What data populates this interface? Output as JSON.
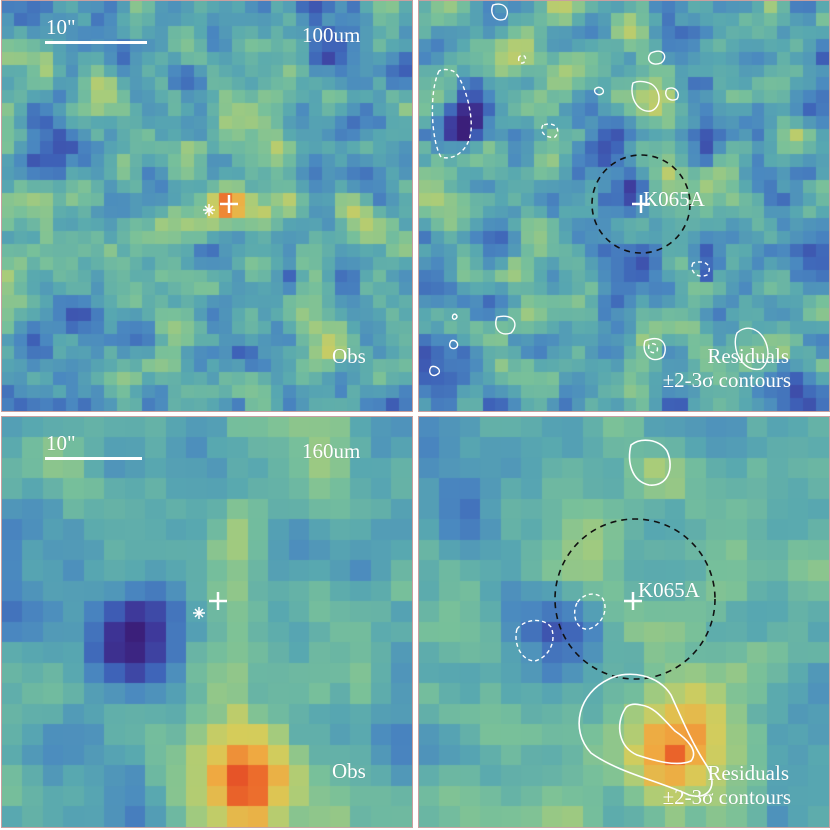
{
  "panels": [
    {
      "band": "100um",
      "scale_label": "10\"",
      "obs_label": "Obs"
    },
    {
      "source_label": "K065A",
      "resid_line1": "Residuals",
      "resid_line2": "±2-3σ contours"
    },
    {
      "band": "160um",
      "scale_label": "10\"",
      "obs_label": "Obs"
    },
    {
      "source_label": "K065A",
      "resid_line1": "Residuals",
      "resid_line2": "±2-3σ contours"
    }
  ],
  "colormap": [
    "#3b1f7a",
    "#3e3a9c",
    "#3e62b8",
    "#4a88c0",
    "#58a8b0",
    "#78c09a",
    "#a8cc7a",
    "#d8cc58",
    "#f0a840",
    "#ec6c2c",
    "#dc2c20"
  ]
}
